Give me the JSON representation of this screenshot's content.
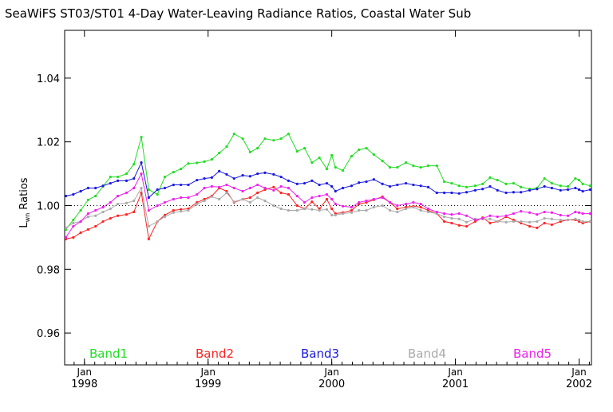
{
  "chart_data": {
    "type": "line",
    "title": "SeaWiFS ST03/ST01 4-Day Water-Leaving Radiance Ratios, Coastal Water Sub",
    "ylabel_main": "L",
    "ylabel_sub": "wn",
    "ylabel_rest": " Ratios",
    "xlim": [
      1997.84,
      2002.1
    ],
    "ylim": [
      0.95,
      1.055
    ],
    "yticks": [
      {
        "value": 0.96,
        "label": "0.96"
      },
      {
        "value": 0.98,
        "label": "0.98"
      },
      {
        "value": 1.0,
        "label": "1.00"
      },
      {
        "value": 1.02,
        "label": "1.02"
      },
      {
        "value": 1.04,
        "label": "1.04"
      }
    ],
    "xticks": [
      {
        "value": 1998,
        "month": "Jan",
        "year": "1998"
      },
      {
        "value": 1999,
        "month": "Jan",
        "year": "1999"
      },
      {
        "value": 2000,
        "month": "Jan",
        "year": "2000"
      },
      {
        "value": 2001,
        "month": "Jan",
        "year": "2001"
      },
      {
        "value": 2002,
        "month": "Jan",
        "year": "2002"
      }
    ],
    "reference_line": 1.0,
    "x": [
      1997.85,
      1997.91,
      1997.97,
      1998.03,
      1998.09,
      1998.15,
      1998.21,
      1998.27,
      1998.34,
      1998.4,
      1998.46,
      1998.52,
      1998.59,
      1998.65,
      1998.72,
      1998.78,
      1998.84,
      1998.91,
      1998.97,
      1999.03,
      1999.09,
      1999.15,
      1999.21,
      1999.28,
      1999.34,
      1999.4,
      1999.46,
      1999.53,
      1999.59,
      1999.65,
      1999.72,
      1999.78,
      1999.84,
      1999.9,
      1999.96,
      2000.0,
      2000.03,
      2000.09,
      2000.16,
      2000.22,
      2000.28,
      2000.34,
      2000.41,
      2000.47,
      2000.53,
      2000.6,
      2000.66,
      2000.72,
      2000.78,
      2000.85,
      2000.91,
      2000.97,
      2001.03,
      2001.09,
      2001.16,
      2001.22,
      2001.28,
      2001.34,
      2001.41,
      2001.47,
      2001.53,
      2001.6,
      2001.66,
      2001.72,
      2001.78,
      2001.85,
      2001.91,
      2001.97,
      2002.0,
      2002.03,
      2002.09
    ],
    "series": [
      {
        "name": "Band1",
        "color": "#22dd22",
        "values": [
          0.9925,
          0.9955,
          0.9985,
          1.0018,
          1.003,
          1.006,
          1.009,
          1.009,
          1.01,
          1.013,
          1.0215,
          1.005,
          1.0035,
          1.009,
          1.0105,
          1.0115,
          1.0132,
          1.0134,
          1.0138,
          1.0145,
          1.0165,
          1.0185,
          1.0225,
          1.021,
          1.0168,
          1.018,
          1.021,
          1.0205,
          1.021,
          1.0225,
          1.017,
          1.018,
          1.0135,
          1.015,
          1.0115,
          1.0158,
          1.012,
          1.011,
          1.0155,
          1.0175,
          1.018,
          1.016,
          1.014,
          1.012,
          1.012,
          1.0135,
          1.0125,
          1.012,
          1.0125,
          1.0125,
          1.0075,
          1.007,
          1.0062,
          1.0058,
          1.0062,
          1.0068,
          1.0088,
          1.008,
          1.0068,
          1.007,
          1.0058,
          1.0052,
          1.0055,
          1.0085,
          1.007,
          1.0062,
          1.006,
          1.0085,
          1.008,
          1.0068,
          1.0062
        ]
      },
      {
        "name": "Band2",
        "color": "#ff2222",
        "values": [
          0.9895,
          0.99,
          0.9915,
          0.9925,
          0.9935,
          0.995,
          0.996,
          0.9968,
          0.9972,
          0.998,
          1.004,
          0.9895,
          0.995,
          0.997,
          0.9985,
          0.9988,
          0.999,
          1.001,
          1.002,
          1.003,
          1.0055,
          1.0045,
          1.001,
          1.002,
          1.0025,
          1.004,
          1.005,
          1.0058,
          1.004,
          1.0035,
          1.0,
          0.999,
          1.0012,
          0.999,
          1.002,
          0.999,
          0.9975,
          0.9978,
          0.9985,
          1.0005,
          1.001,
          1.0018,
          1.0028,
          1.001,
          0.999,
          0.9995,
          0.9998,
          0.9995,
          0.9985,
          0.9975,
          0.995,
          0.9945,
          0.9938,
          0.9935,
          0.995,
          0.9962,
          0.9945,
          0.995,
          0.9965,
          0.9955,
          0.9945,
          0.9935,
          0.993,
          0.9945,
          0.994,
          0.995,
          0.9955,
          0.9955,
          0.995,
          0.9945,
          0.995
        ]
      },
      {
        "name": "Band3",
        "color": "#1a1ae0",
        "values": [
          1.003,
          1.0035,
          1.0045,
          1.0055,
          1.0055,
          1.0062,
          1.007,
          1.0078,
          1.0078,
          1.0085,
          1.0135,
          1.0025,
          1.005,
          1.0055,
          1.0065,
          1.0065,
          1.0065,
          1.008,
          1.0085,
          1.0088,
          1.0108,
          1.0098,
          1.0085,
          1.0095,
          1.0092,
          1.01,
          1.0103,
          1.0098,
          1.009,
          1.0078,
          1.0068,
          1.007,
          1.0078,
          1.0065,
          1.007,
          1.006,
          1.0045,
          1.0055,
          1.0062,
          1.0072,
          1.0075,
          1.0082,
          1.0068,
          1.006,
          1.0065,
          1.007,
          1.0065,
          1.0062,
          1.0058,
          1.004,
          1.004,
          1.004,
          1.0038,
          1.0042,
          1.0048,
          1.0052,
          1.006,
          1.0048,
          1.004,
          1.0042,
          1.0042,
          1.0048,
          1.0052,
          1.006,
          1.0055,
          1.0048,
          1.005,
          1.0055,
          1.005,
          1.0045,
          1.005
        ]
      },
      {
        "name": "Band4",
        "color": "#aaaaaa",
        "values": [
          0.993,
          0.9945,
          0.995,
          0.9965,
          0.9968,
          0.998,
          0.999,
          1.0005,
          1.0008,
          1.0015,
          1.0055,
          0.9935,
          0.995,
          0.9965,
          0.9978,
          0.9982,
          0.9985,
          1.0005,
          1.0015,
          1.0028,
          1.002,
          1.004,
          1.0012,
          1.002,
          1.001,
          1.0025,
          1.0015,
          1.0,
          0.999,
          0.9985,
          0.9985,
          0.999,
          0.9988,
          0.9985,
          0.9988,
          0.997,
          0.997,
          0.9975,
          0.9978,
          0.9985,
          0.9985,
          0.9995,
          1.0,
          0.9985,
          0.998,
          0.999,
          0.9995,
          0.9985,
          0.998,
          0.9975,
          0.9965,
          0.996,
          0.9958,
          0.9948,
          0.9958,
          0.9958,
          0.9958,
          0.995,
          0.9948,
          0.995,
          0.995,
          0.9948,
          0.995,
          0.996,
          0.9958,
          0.9955,
          0.9955,
          0.9958,
          0.9955,
          0.995,
          0.995
        ]
      },
      {
        "name": "Band5",
        "color": "#ee22ee",
        "values": [
          0.99,
          0.9935,
          0.995,
          0.9975,
          0.9985,
          0.9995,
          1.001,
          1.003,
          1.004,
          1.0055,
          1.01,
          0.9985,
          1.0,
          1.001,
          1.002,
          1.0025,
          1.0025,
          1.0035,
          1.0055,
          1.006,
          1.0058,
          1.0065,
          1.0055,
          1.0045,
          1.0055,
          1.0065,
          1.0055,
          1.0048,
          1.006,
          1.0055,
          1.003,
          1.001,
          1.0025,
          1.003,
          1.0035,
          1.002,
          1.0005,
          0.9998,
          0.9995,
          1.001,
          1.0015,
          1.002,
          1.0025,
          1.001,
          1.0,
          1.0005,
          1.001,
          1.0005,
          0.999,
          0.998,
          0.9975,
          0.9972,
          0.9975,
          0.9968,
          0.9955,
          0.996,
          0.9968,
          0.9965,
          0.9968,
          0.9975,
          0.9982,
          0.9978,
          0.9972,
          0.998,
          0.9978,
          0.997,
          0.9968,
          0.998,
          0.9978,
          0.9975,
          0.9975
        ]
      }
    ]
  }
}
